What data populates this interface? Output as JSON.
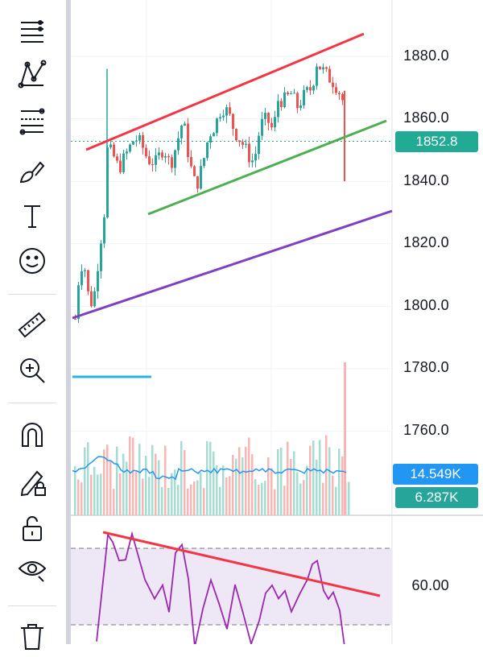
{
  "toolbar": {
    "tools": [
      {
        "icon": "crosshair-lines-icon"
      },
      {
        "icon": "pattern-icon"
      },
      {
        "icon": "fib-retracement-icon"
      },
      {
        "icon": "brush-icon"
      },
      {
        "icon": "text-tool-icon"
      },
      {
        "icon": "emoji-icon"
      },
      {
        "icon": "ruler-icon"
      },
      {
        "icon": "zoom-in-icon"
      },
      {
        "icon": "magnet-icon"
      },
      {
        "icon": "lock-drawings-icon"
      },
      {
        "icon": "unlock-icon"
      },
      {
        "icon": "visibility-icon"
      },
      {
        "icon": "trash-icon"
      }
    ]
  },
  "price_axis": {
    "labels": [
      "1880.0",
      "1860.0",
      "1840.0",
      "1820.0",
      "1800.0",
      "1780.0",
      "1760.0"
    ]
  },
  "current_price": {
    "label": "1852.8",
    "color": "#22ab94"
  },
  "volume": {
    "ma_label": "14.549K",
    "ma_color": "#2196f3",
    "vol_label": "6.287K",
    "vol_color": "#26a69a"
  },
  "rsi": {
    "level_label": "60.00"
  },
  "colors": {
    "up": "#26a69a",
    "down": "#ef5350",
    "upper_trend": "#f23645",
    "lower_trend": "#4caf50",
    "support_line": "#7e3fc1",
    "rsi_line": "#9c27b0",
    "rsi_band": "#ede7f6",
    "hline": "#29b6d8"
  }
}
